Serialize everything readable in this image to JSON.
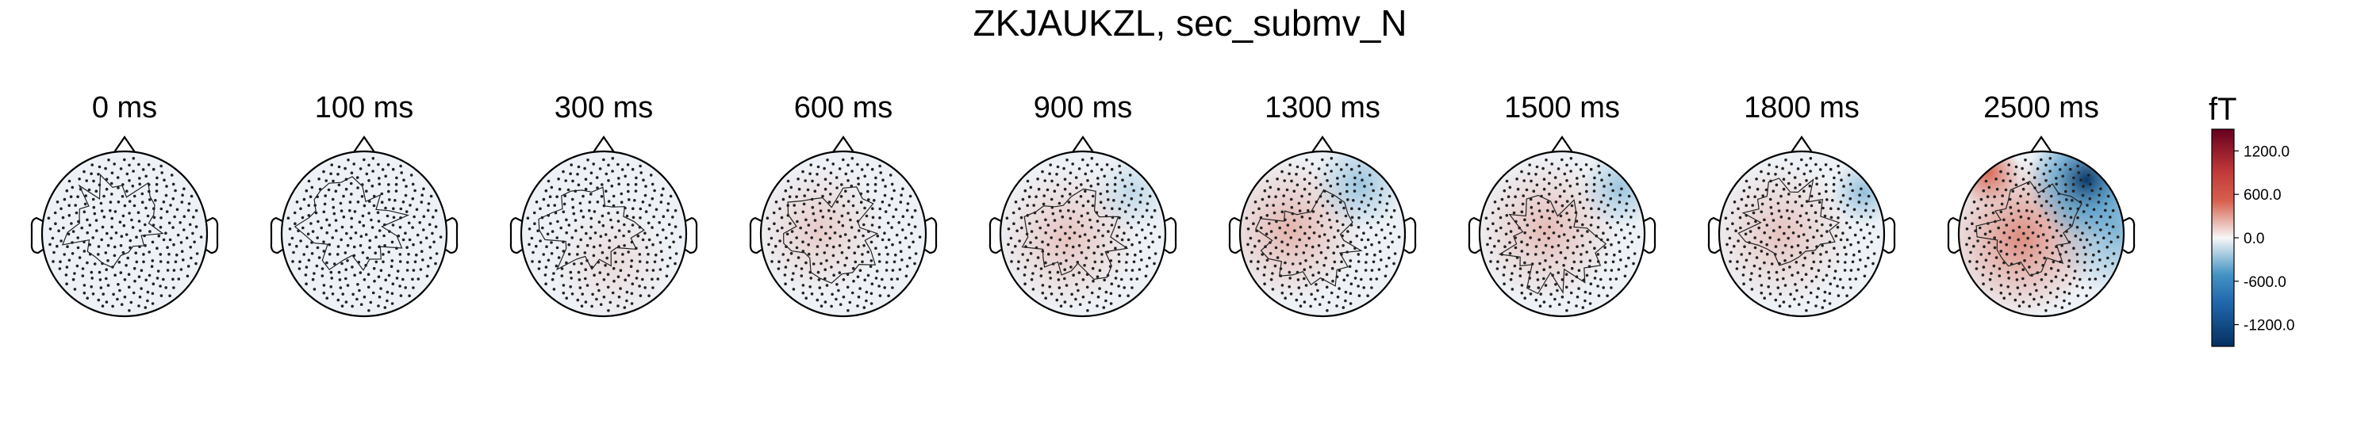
{
  "chart_data": {
    "type": "topomap",
    "title": "ZKJAUKZL, sec_submv_N",
    "unit": "fT",
    "times": [
      "0 ms",
      "100 ms",
      "300 ms",
      "600 ms",
      "900 ms",
      "1300 ms",
      "1500 ms",
      "1800 ms",
      "2500 ms"
    ],
    "colorbar": {
      "ticks": [
        1200,
        600,
        0,
        -600,
        -1200
      ],
      "tick_labels": [
        "1200.0",
        "600.0",
        "0.0",
        "-600.0",
        "-1200.0"
      ],
      "range": [
        -1500,
        1500
      ],
      "colors": {
        "max": "#67001f",
        "pos": "#d6604d",
        "zero": "#f7f7f7",
        "neg": "#4393c3",
        "min": "#053061"
      }
    },
    "maps": [
      {
        "time": "0 ms",
        "red": [],
        "blue": []
      },
      {
        "time": "100 ms",
        "red": [],
        "blue": []
      },
      {
        "time": "300 ms",
        "red": [
          [
            0.1,
            0.35,
            0.45,
            150
          ]
        ],
        "blue": []
      },
      {
        "time": "600 ms",
        "red": [
          [
            -0.3,
            -0.05,
            0.5,
            250
          ]
        ],
        "blue": []
      },
      {
        "time": "900 ms",
        "red": [
          [
            -0.2,
            0.05,
            0.55,
            300
          ]
        ],
        "blue": [
          [
            0.6,
            -0.5,
            0.3,
            250
          ]
        ]
      },
      {
        "time": "1300 ms",
        "red": [
          [
            -0.4,
            -0.05,
            0.55,
            400
          ]
        ],
        "blue": [
          [
            0.45,
            -0.6,
            0.35,
            450
          ]
        ]
      },
      {
        "time": "1500 ms",
        "red": [
          [
            -0.2,
            -0.05,
            0.55,
            350
          ]
        ],
        "blue": [
          [
            0.7,
            -0.55,
            0.3,
            450
          ]
        ]
      },
      {
        "time": "1800 ms",
        "red": [
          [
            -0.25,
            0.0,
            0.55,
            300
          ]
        ],
        "blue": [
          [
            0.75,
            -0.5,
            0.25,
            500
          ]
        ]
      },
      {
        "time": "2500 ms",
        "red": [
          [
            -0.25,
            0.05,
            0.6,
            650
          ],
          [
            -0.65,
            -0.75,
            0.25,
            900
          ]
        ],
        "blue": [
          [
            0.55,
            -0.65,
            0.45,
            1400
          ],
          [
            0.9,
            -0.05,
            0.5,
            600
          ]
        ]
      }
    ]
  }
}
